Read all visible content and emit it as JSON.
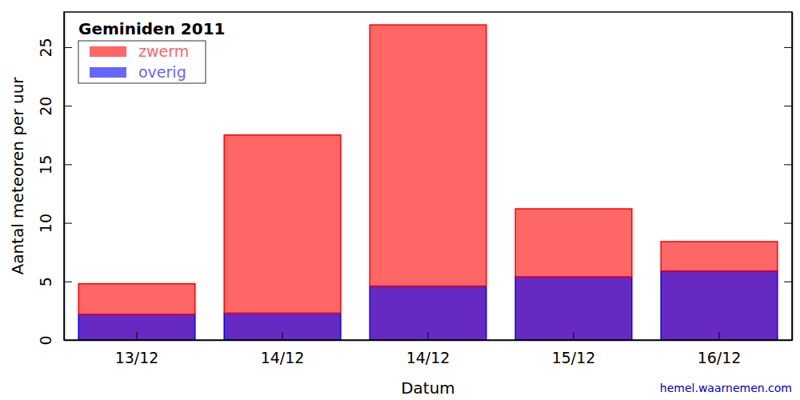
{
  "chart_data": {
    "type": "bar",
    "title": "Geminiden 2011",
    "x_label": "Datum",
    "y_label": "Aantal meteoren per uur",
    "annotation": "hemel.waarnemen.com",
    "categories": [
      "13/12",
      "14/12",
      "14/12",
      "15/12",
      "16/12"
    ],
    "series": [
      {
        "name": "zwerm",
        "color": "#ff0000",
        "values": [
          2.6,
          15.2,
          22.3,
          5.8,
          2.5
        ]
      },
      {
        "name": "overig",
        "color": "#0000ff",
        "values": [
          2.2,
          2.3,
          4.6,
          5.4,
          5.9
        ]
      }
    ],
    "stacked": true,
    "legend": "upper left",
    "ylim": [
      0,
      28
    ],
    "yticks": [
      0,
      5,
      10,
      15,
      20,
      25
    ]
  }
}
